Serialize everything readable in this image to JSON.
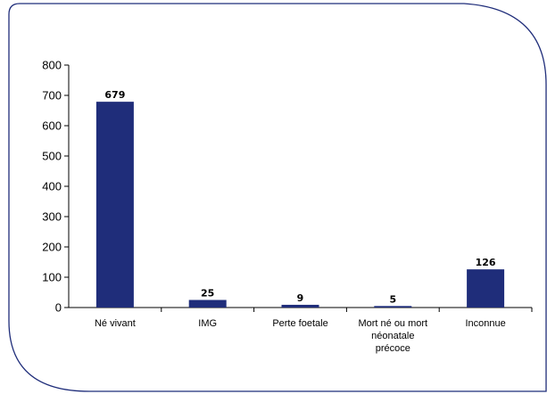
{
  "chart_data": {
    "type": "bar",
    "categories": [
      [
        "Né vivant"
      ],
      [
        "IMG"
      ],
      [
        "Perte foetale"
      ],
      [
        "Mort né ou mort",
        "néonatale",
        "précoce"
      ],
      [
        "Inconnue"
      ]
    ],
    "values": [
      679,
      25,
      9,
      5,
      126
    ],
    "data_labels": [
      "679",
      "25",
      "9",
      "5",
      "126"
    ],
    "ylim": [
      0,
      800
    ],
    "yticks": [
      0,
      100,
      200,
      300,
      400,
      500,
      600,
      700,
      800
    ],
    "ytick_labels": [
      "0",
      "100",
      "200",
      "300",
      "400",
      "500",
      "600",
      "700",
      "800"
    ],
    "grid": false,
    "legend": "none",
    "colors": {
      "bar": "#1f2d7a",
      "frame": "#1f2d7a",
      "axis": "#000000"
    }
  }
}
